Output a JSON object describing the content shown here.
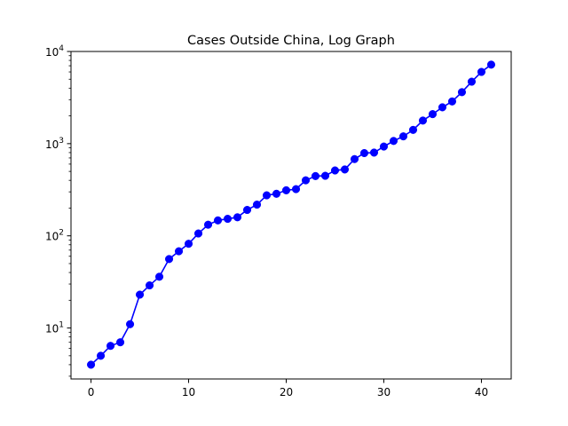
{
  "chart_data": {
    "type": "line",
    "title": "Cases Outside China, Log Graph",
    "xlabel": "",
    "ylabel": "",
    "xlim": [
      -2.05,
      43.05
    ],
    "ylim": [
      2.8,
      10000
    ],
    "yscale": "log",
    "grid": false,
    "x_ticks": [
      0,
      10,
      20,
      30,
      40
    ],
    "y_ticks": [
      {
        "value": 10,
        "base": "10",
        "exp": "1"
      },
      {
        "value": 100,
        "base": "10",
        "exp": "2"
      },
      {
        "value": 1000,
        "base": "10",
        "exp": "3"
      },
      {
        "value": 10000,
        "base": "10",
        "exp": "4"
      }
    ],
    "series": [
      {
        "color": "#0000ff",
        "marker": "circle",
        "x": [
          0,
          1,
          2,
          3,
          4,
          5,
          6,
          7,
          8,
          9,
          10,
          11,
          12,
          13,
          14,
          15,
          16,
          17,
          18,
          19,
          20,
          21,
          22,
          23,
          24,
          25,
          26,
          27,
          28,
          29,
          30,
          31,
          32,
          33,
          34,
          35,
          36,
          37,
          38,
          39,
          40,
          41
        ],
        "values": [
          4,
          5,
          6.4,
          7,
          11,
          23,
          29,
          36,
          56,
          68,
          82,
          106,
          132,
          147,
          153,
          159,
          191,
          218,
          275,
          286,
          312,
          321,
          400,
          445,
          448,
          512,
          525,
          680,
          790,
          800,
          930,
          1070,
          1200,
          1410,
          1780,
          2090,
          2480,
          2870,
          3620,
          4700,
          6000,
          7200
        ]
      }
    ]
  }
}
